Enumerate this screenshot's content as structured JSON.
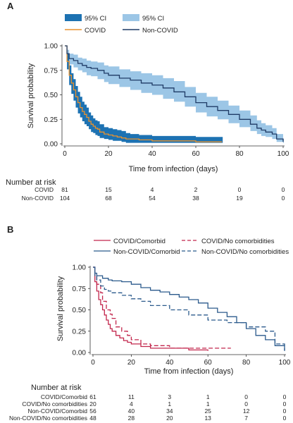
{
  "chart_data": [
    {
      "panel": "A",
      "type": "line",
      "ylabel": "Survival probability",
      "xlabel": "Time from infection (days)",
      "xlim": [
        0,
        100
      ],
      "ylim": [
        0,
        1
      ],
      "xticks": [
        "0",
        "20",
        "40",
        "60",
        "80",
        "100"
      ],
      "yticks": [
        "0.00",
        "0.25",
        "0.50",
        "0.75",
        "1.00"
      ],
      "legend": {
        "placement": "top-left",
        "entries": [
          "95% CI",
          "95% CI",
          "COVID",
          "Non-COVID"
        ]
      },
      "series": [
        {
          "name": "COVID",
          "color": "#E8922E",
          "ci_color": "#1D72B2",
          "x": [
            0,
            1,
            2,
            3,
            4,
            5,
            6,
            7,
            8,
            9,
            10,
            11,
            12,
            13,
            14,
            15,
            16,
            18,
            20,
            22,
            24,
            26,
            28,
            30,
            34,
            40,
            50,
            60,
            72
          ],
          "y": [
            1.0,
            0.84,
            0.7,
            0.62,
            0.55,
            0.48,
            0.42,
            0.37,
            0.33,
            0.3,
            0.27,
            0.23,
            0.2,
            0.18,
            0.16,
            0.15,
            0.12,
            0.1,
            0.09,
            0.08,
            0.07,
            0.06,
            0.05,
            0.05,
            0.04,
            0.03,
            0.03,
            0.02,
            0.02
          ],
          "lower": [
            1.0,
            0.76,
            0.6,
            0.51,
            0.44,
            0.37,
            0.31,
            0.27,
            0.23,
            0.2,
            0.18,
            0.15,
            0.12,
            0.11,
            0.09,
            0.08,
            0.06,
            0.05,
            0.04,
            0.03,
            0.03,
            0.02,
            0.01,
            0.01,
            0.01,
            0.01,
            0.01,
            0.01,
            0.01
          ],
          "upper": [
            1.0,
            0.92,
            0.8,
            0.72,
            0.66,
            0.59,
            0.53,
            0.48,
            0.43,
            0.4,
            0.37,
            0.32,
            0.29,
            0.26,
            0.24,
            0.23,
            0.2,
            0.17,
            0.16,
            0.15,
            0.14,
            0.13,
            0.11,
            0.1,
            0.09,
            0.08,
            0.08,
            0.07,
            0.07
          ]
        },
        {
          "name": "Non-COVID",
          "color": "#1F3B66",
          "ci_color": "#9CC6E6",
          "x": [
            0,
            1,
            2,
            4,
            6,
            8,
            10,
            12,
            15,
            18,
            20,
            25,
            30,
            35,
            40,
            45,
            50,
            55,
            60,
            65,
            70,
            75,
            80,
            85,
            88,
            90,
            92,
            95,
            97,
            100
          ],
          "y": [
            1.0,
            0.92,
            0.87,
            0.85,
            0.82,
            0.8,
            0.78,
            0.77,
            0.75,
            0.72,
            0.7,
            0.67,
            0.65,
            0.62,
            0.6,
            0.57,
            0.53,
            0.48,
            0.42,
            0.38,
            0.34,
            0.3,
            0.25,
            0.2,
            0.16,
            0.14,
            0.12,
            0.1,
            0.05,
            0.02
          ],
          "lower": [
            1.0,
            0.87,
            0.81,
            0.78,
            0.75,
            0.73,
            0.7,
            0.69,
            0.66,
            0.63,
            0.61,
            0.58,
            0.55,
            0.52,
            0.5,
            0.46,
            0.43,
            0.38,
            0.32,
            0.28,
            0.25,
            0.21,
            0.17,
            0.13,
            0.1,
            0.08,
            0.07,
            0.05,
            0.02,
            0.01
          ],
          "upper": [
            1.0,
            0.96,
            0.92,
            0.91,
            0.88,
            0.87,
            0.85,
            0.84,
            0.83,
            0.8,
            0.79,
            0.76,
            0.74,
            0.72,
            0.7,
            0.67,
            0.64,
            0.58,
            0.52,
            0.48,
            0.44,
            0.39,
            0.34,
            0.29,
            0.24,
            0.21,
            0.19,
            0.16,
            0.1,
            0.05
          ]
        }
      ],
      "risk_table": {
        "title": "Number at risk",
        "times": [
          "0",
          "20",
          "40",
          "60",
          "80",
          "100"
        ],
        "rows": [
          {
            "label": "COVID",
            "values": [
              "81",
              "15",
              "4",
              "2",
              "0",
              "0"
            ]
          },
          {
            "label": "Non-COVID",
            "values": [
              "104",
              "68",
              "54",
              "38",
              "19",
              "0"
            ]
          }
        ]
      }
    },
    {
      "panel": "B",
      "type": "line",
      "ylabel": "Survival probability",
      "xlabel": "Time from infection (days)",
      "xlim": [
        0,
        100
      ],
      "ylim": [
        0,
        1
      ],
      "xticks": [
        "0",
        "20",
        "40",
        "60",
        "80",
        "100"
      ],
      "yticks": [
        "0.00",
        "0.25",
        "0.50",
        "0.75",
        "1.00"
      ],
      "legend": {
        "placement": "top",
        "entries": [
          "COVID/Comorbid",
          "COVID/No comorbidities",
          "Non-COVID/Comorbid",
          "Non-COVID/No comorbidities"
        ]
      },
      "series": [
        {
          "name": "COVID/Comorbid",
          "color": "#C2264C",
          "dash": false,
          "x": [
            0,
            1,
            2,
            3,
            4,
            5,
            6,
            7,
            8,
            9,
            10,
            12,
            14,
            16,
            18,
            20,
            25,
            30,
            40,
            50,
            60
          ],
          "y": [
            1.0,
            0.83,
            0.72,
            0.62,
            0.56,
            0.5,
            0.44,
            0.38,
            0.33,
            0.28,
            0.25,
            0.2,
            0.17,
            0.14,
            0.12,
            0.1,
            0.07,
            0.05,
            0.05,
            0.03,
            0.02
          ]
        },
        {
          "name": "COVID/No comorbidities",
          "color": "#C2264C",
          "dash": true,
          "x": [
            0,
            1,
            2,
            4,
            5,
            7,
            9,
            10,
            12,
            15,
            18,
            20,
            25,
            30,
            40,
            60,
            72
          ],
          "y": [
            1.0,
            0.9,
            0.8,
            0.7,
            0.6,
            0.5,
            0.45,
            0.4,
            0.3,
            0.25,
            0.2,
            0.15,
            0.1,
            0.08,
            0.05,
            0.05,
            0.05
          ]
        },
        {
          "name": "Non-COVID/Comorbid",
          "color": "#2B5A8C",
          "dash": false,
          "x": [
            0,
            1,
            2,
            5,
            8,
            10,
            15,
            20,
            25,
            30,
            35,
            40,
            45,
            50,
            55,
            60,
            65,
            70,
            75,
            80,
            85,
            90,
            95,
            100
          ],
          "y": [
            1.0,
            0.93,
            0.9,
            0.87,
            0.85,
            0.84,
            0.83,
            0.8,
            0.76,
            0.73,
            0.71,
            0.68,
            0.65,
            0.62,
            0.58,
            0.52,
            0.47,
            0.42,
            0.35,
            0.28,
            0.2,
            0.15,
            0.08,
            0.02
          ]
        },
        {
          "name": "Non-COVID/No comorbidities",
          "color": "#2B5A8C",
          "dash": true,
          "x": [
            0,
            1,
            2,
            4,
            6,
            8,
            10,
            15,
            20,
            25,
            30,
            40,
            50,
            60,
            70,
            80,
            90,
            95,
            100
          ],
          "y": [
            1.0,
            0.9,
            0.85,
            0.78,
            0.74,
            0.72,
            0.7,
            0.67,
            0.63,
            0.6,
            0.55,
            0.5,
            0.44,
            0.38,
            0.35,
            0.3,
            0.25,
            0.1,
            0.02
          ]
        }
      ],
      "risk_table": {
        "title": "Number at risk",
        "times": [
          "0",
          "20",
          "40",
          "60",
          "80",
          "100"
        ],
        "rows": [
          {
            "label": "COVID/Comorbid",
            "values": [
              "61",
              "11",
              "3",
              "1",
              "0",
              "0"
            ]
          },
          {
            "label": "COVID/No comorbidities",
            "values": [
              "20",
              "4",
              "1",
              "1",
              "0",
              "0"
            ]
          },
          {
            "label": "Non-COVID/Comorbid",
            "values": [
              "56",
              "40",
              "34",
              "25",
              "12",
              "0"
            ]
          },
          {
            "label": "Non-COVID/No comorbidities",
            "values": [
              "48",
              "28",
              "20",
              "13",
              "7",
              "0"
            ]
          }
        ]
      }
    }
  ]
}
